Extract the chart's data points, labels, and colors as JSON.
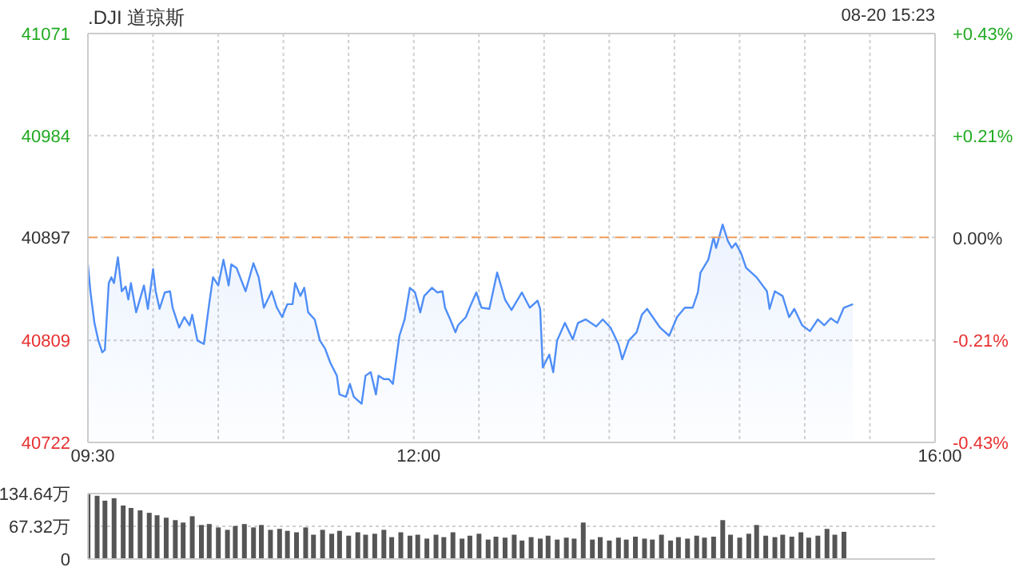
{
  "chart_data": [
    {
      "type": "area",
      "title": ".DJI 道琼斯",
      "annotations": [
        "08-20 15:23"
      ],
      "x": [
        9.5,
        9.52,
        9.55,
        9.58,
        9.61,
        9.63,
        9.66,
        9.68,
        9.7,
        9.73,
        9.76,
        9.79,
        9.81,
        9.83,
        9.87,
        9.93,
        9.96,
        10.0,
        10.02,
        10.05,
        10.09,
        10.13,
        10.15,
        10.2,
        10.24,
        10.28,
        10.3,
        10.34,
        10.39,
        10.43,
        10.46,
        10.5,
        10.54,
        10.58,
        10.6,
        10.64,
        10.71,
        10.77,
        10.81,
        10.85,
        10.91,
        10.95,
        10.99,
        11.03,
        11.07,
        11.09,
        11.13,
        11.16,
        11.19,
        11.24,
        11.28,
        11.32,
        11.36,
        11.41,
        11.43,
        11.48,
        11.51,
        11.54,
        11.6,
        11.63,
        11.67,
        11.71,
        11.73,
        11.77,
        11.81,
        11.84,
        11.89,
        11.93,
        11.97,
        12.01,
        12.05,
        12.08,
        12.14,
        12.18,
        12.22,
        12.24,
        12.28,
        12.32,
        12.34,
        12.4,
        12.44,
        12.48,
        12.52,
        12.58,
        12.64,
        12.7,
        12.75,
        12.83,
        12.89,
        12.95,
        12.97,
        12.99,
        13.04,
        13.07,
        13.1,
        13.16,
        13.22,
        13.26,
        13.32,
        13.4,
        13.45,
        13.51,
        13.57,
        13.6,
        13.65,
        13.71,
        13.75,
        13.79,
        13.89,
        13.96,
        14.02,
        14.08,
        14.14,
        14.18,
        14.2,
        14.26,
        14.3,
        14.32,
        14.37,
        14.41,
        14.44,
        14.47,
        14.51,
        14.55,
        14.63,
        14.71,
        14.73,
        14.77,
        14.83,
        14.88,
        14.92,
        14.98,
        15.04,
        15.1,
        15.15,
        15.2,
        15.25,
        15.3,
        15.37
      ],
      "series": [
        {
          "color": "#4f8ef7",
          "values": [
            40874,
            40850,
            40824,
            40809,
            40799,
            40801,
            40858,
            40863,
            40858,
            40880,
            40851,
            40855,
            40844,
            40858,
            40833,
            40856,
            40836,
            40870,
            40851,
            40836,
            40850,
            40851,
            40837,
            40820,
            40829,
            40822,
            40831,
            40809,
            40806,
            40840,
            40863,
            40856,
            40878,
            40856,
            40874,
            40871,
            40851,
            40875,
            40863,
            40837,
            40851,
            40837,
            40829,
            40840,
            40840,
            40858,
            40847,
            40854,
            40833,
            40827,
            40809,
            40802,
            40790,
            40779,
            40763,
            40761,
            40772,
            40761,
            40755,
            40779,
            40782,
            40763,
            40779,
            40776,
            40776,
            40772,
            40813,
            40827,
            40854,
            40850,
            40833,
            40847,
            40854,
            40850,
            40851,
            40837,
            40827,
            40816,
            40822,
            40829,
            40840,
            40850,
            40837,
            40836,
            40867,
            40844,
            40835,
            40850,
            40837,
            40843,
            40836,
            40786,
            40797,
            40782,
            40809,
            40824,
            40810,
            40824,
            40827,
            40821,
            40827,
            40820,
            40806,
            40793,
            40809,
            40816,
            40831,
            40836,
            40820,
            40813,
            40829,
            40837,
            40837,
            40850,
            40867,
            40878,
            40897,
            40888,
            40908,
            40894,
            40888,
            40892,
            40884,
            40871,
            40863,
            40851,
            40836,
            40851,
            40847,
            40829,
            40836,
            40822,
            40817,
            40827,
            40822,
            40828,
            40824,
            40837,
            40840
          ]
        }
      ],
      "xlim": [
        9.5,
        16
      ],
      "xticks": [
        {
          "value": 9.5,
          "label": "09:30"
        },
        {
          "value": 10,
          "label": null
        },
        {
          "value": 10.5,
          "label": null
        },
        {
          "value": 11,
          "label": null
        },
        {
          "value": 11.5,
          "label": null
        },
        {
          "value": 12,
          "label": "12:00"
        },
        {
          "value": 12.5,
          "label": null
        },
        {
          "value": 13,
          "label": null
        },
        {
          "value": 13.5,
          "label": null
        },
        {
          "value": 14,
          "label": null
        },
        {
          "value": 14.5,
          "label": null
        },
        {
          "value": 15,
          "label": null
        },
        {
          "value": 15.5,
          "label": null
        },
        {
          "value": 16,
          "label": "16:00"
        }
      ],
      "ylim": [
        40722,
        41071
      ],
      "yticks": [
        40722,
        40809,
        40897,
        40984,
        41071
      ],
      "y2lim": [
        -0.43,
        0.43
      ],
      "y2ticks": [
        {
          "value": -0.43,
          "label": "-0.43%"
        },
        {
          "value": -0.215,
          "label": "-0.21%"
        },
        {
          "value": 0,
          "label": "0.00%"
        },
        {
          "value": 0.215,
          "label": "+0.21%"
        },
        {
          "value": 0.43,
          "label": "+0.43%"
        }
      ],
      "ref_lines": [
        {
          "axis": "y",
          "value": 40897,
          "color": "#f0a060",
          "line_style": "dashed"
        }
      ],
      "grid": true
    },
    {
      "type": "bar",
      "tick_labels": "y",
      "grid": "y",
      "xlim": [
        9.5,
        16
      ],
      "x": [
        9.5,
        9.57,
        9.63,
        9.7,
        9.77,
        9.83,
        9.9,
        9.97,
        10.03,
        10.1,
        10.17,
        10.23,
        10.3,
        10.37,
        10.43,
        10.5,
        10.57,
        10.63,
        10.7,
        10.77,
        10.83,
        10.9,
        10.97,
        11.03,
        11.1,
        11.17,
        11.23,
        11.3,
        11.37,
        11.43,
        11.5,
        11.57,
        11.63,
        11.7,
        11.77,
        11.83,
        11.9,
        11.97,
        12.03,
        12.1,
        12.17,
        12.23,
        12.3,
        12.37,
        12.43,
        12.5,
        12.57,
        12.63,
        12.7,
        12.77,
        12.83,
        12.9,
        12.97,
        13.03,
        13.1,
        13.17,
        13.23,
        13.3,
        13.37,
        13.43,
        13.5,
        13.57,
        13.63,
        13.7,
        13.77,
        13.83,
        13.9,
        13.97,
        14.03,
        14.1,
        14.17,
        14.23,
        14.3,
        14.37,
        14.43,
        14.5,
        14.57,
        14.63,
        14.7,
        14.77,
        14.83,
        14.9,
        14.97,
        15.03,
        15.1,
        15.17,
        15.23,
        15.3
      ],
      "series": [
        {
          "color": "#555555",
          "values": [
            134,
            130,
            120,
            125,
            110,
            105,
            100,
            95,
            90,
            85,
            80,
            75,
            88,
            70,
            72,
            65,
            60,
            68,
            72,
            65,
            70,
            60,
            62,
            58,
            55,
            65,
            50,
            60,
            52,
            58,
            48,
            55,
            50,
            52,
            60,
            45,
            55,
            48,
            50,
            42,
            50,
            45,
            55,
            42,
            48,
            52,
            40,
            46,
            44,
            50,
            38,
            45,
            42,
            48,
            40,
            44,
            42,
            75,
            40,
            45,
            38,
            44,
            40,
            46,
            42,
            40,
            50,
            38,
            45,
            42,
            48,
            44,
            46,
            80,
            50,
            44,
            52,
            70,
            48,
            45,
            50,
            46,
            55,
            44,
            48,
            62,
            50,
            56
          ]
        }
      ],
      "ylim": [
        0,
        134.64
      ],
      "yticks": [
        0,
        {
          "value": 67.32,
          "label": "67.32万"
        },
        {
          "value": 134.64,
          "label": "134.64万"
        }
      ]
    }
  ]
}
